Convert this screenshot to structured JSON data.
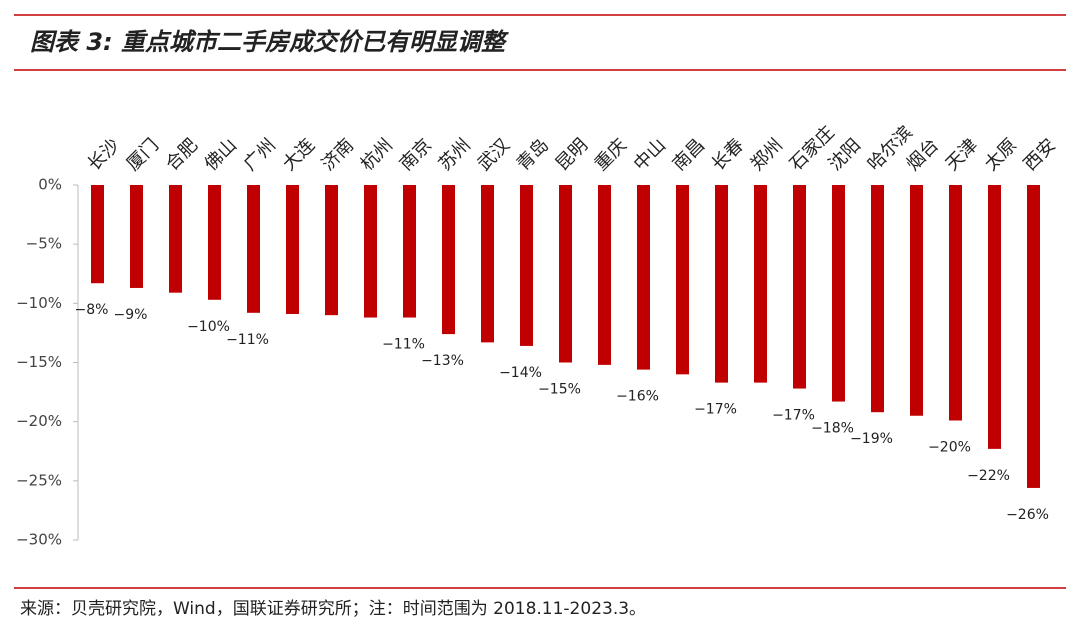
{
  "chart_data": {
    "type": "bar",
    "title": "图表 3: 重点城市二手房成交价已有明显调整",
    "source": "来源：贝壳研究院，Wind，国联证券研究所；注：时间范围为 2018.11-2023.3。",
    "categories": [
      "长沙",
      "厦门",
      "合肥",
      "佛山",
      "广州",
      "大连",
      "济南",
      "杭州",
      "南京",
      "苏州",
      "武汉",
      "青岛",
      "昆明",
      "重庆",
      "中山",
      "南昌",
      "长春",
      "郑州",
      "石家庄",
      "沈阳",
      "哈尔滨",
      "烟台",
      "天津",
      "太原",
      "西安"
    ],
    "values": [
      -8.3,
      -8.7,
      -9.1,
      -9.7,
      -10.8,
      -10.9,
      -11.0,
      -11.2,
      -11.2,
      -12.6,
      -13.3,
      -13.6,
      -15.0,
      -15.2,
      -15.6,
      -16.0,
      -16.7,
      -16.7,
      -17.2,
      -18.3,
      -19.2,
      -19.5,
      -19.9,
      -22.3,
      -25.6
    ],
    "value_labels": [
      "−8%",
      "−9%",
      null,
      "−10%",
      "−11%",
      null,
      null,
      null,
      "−11%",
      "−13%",
      null,
      "−14%",
      "−15%",
      null,
      "−16%",
      null,
      "−17%",
      null,
      "−17%",
      "−18%",
      "−19%",
      null,
      "−20%",
      "−22%",
      "−26%"
    ],
    "color": "#c00000",
    "ylim": [
      -30,
      0
    ],
    "yticks": [
      {
        "value": 0,
        "label": "0%"
      },
      {
        "value": -5,
        "label": "−5%"
      },
      {
        "value": -10,
        "label": "−10%"
      },
      {
        "value": -15,
        "label": "−15%"
      },
      {
        "value": -20,
        "label": "−20%"
      },
      {
        "value": -25,
        "label": "−25%"
      },
      {
        "value": -30,
        "label": "−30%"
      }
    ],
    "grid": false
  }
}
